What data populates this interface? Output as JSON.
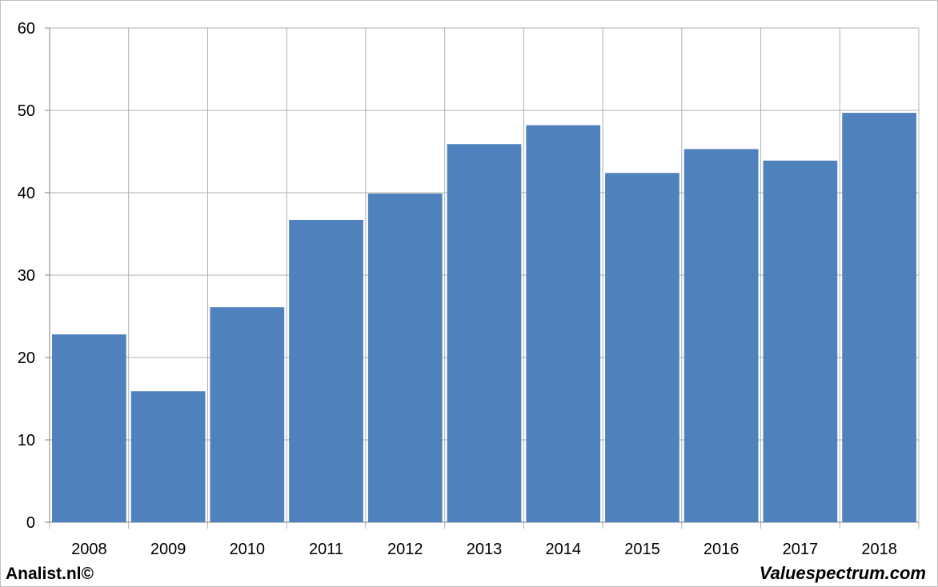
{
  "chart_data": {
    "type": "bar",
    "categories": [
      "2008",
      "2009",
      "2010",
      "2011",
      "2012",
      "2013",
      "2014",
      "2015",
      "2016",
      "2017",
      "2018"
    ],
    "values": [
      22.8,
      15.9,
      26.1,
      36.7,
      39.9,
      45.9,
      48.2,
      42.4,
      45.3,
      43.9,
      49.7
    ],
    "title": "",
    "xlabel": "",
    "ylabel": "",
    "ylim": [
      0,
      60
    ],
    "yticks": [
      0,
      10,
      20,
      30,
      40,
      50,
      60
    ],
    "grid": true,
    "bar_color": "#4f81bd",
    "grid_color": "#b0b0b0"
  },
  "footer": {
    "left_text": "Analist.nl©",
    "right_text": "Valuespectrum.com"
  }
}
